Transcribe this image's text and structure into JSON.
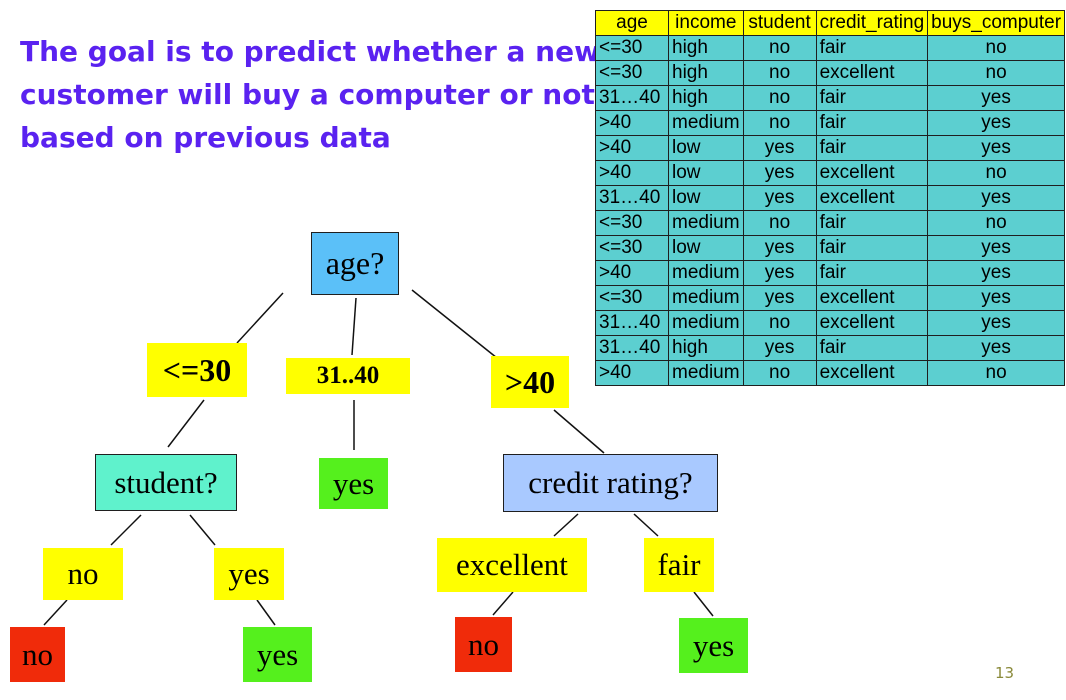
{
  "heading": {
    "lines": [
      "The goal is to predict whether a new",
      "customer will buy a computer or not",
      "based on previous data"
    ]
  },
  "table": {
    "headers": [
      "age",
      "income",
      "student",
      "credit_rating",
      "buys_computer"
    ],
    "rows": [
      [
        "<=30",
        "high",
        "no",
        "fair",
        "no"
      ],
      [
        "<=30",
        "high",
        "no",
        "excellent",
        "no"
      ],
      [
        "31…40",
        "high",
        "no",
        "fair",
        "yes"
      ],
      [
        ">40",
        "medium",
        "no",
        "fair",
        "yes"
      ],
      [
        ">40",
        "low",
        "yes",
        "fair",
        "yes"
      ],
      [
        ">40",
        "low",
        "yes",
        "excellent",
        "no"
      ],
      [
        "31…40",
        "low",
        "yes",
        "excellent",
        "yes"
      ],
      [
        "<=30",
        "medium",
        "no",
        "fair",
        "no"
      ],
      [
        "<=30",
        "low",
        "yes",
        "fair",
        "yes"
      ],
      [
        ">40",
        "medium",
        "yes",
        "fair",
        "yes"
      ],
      [
        "<=30",
        "medium",
        "yes",
        "excellent",
        "yes"
      ],
      [
        "31…40",
        "medium",
        "no",
        "excellent",
        "yes"
      ],
      [
        "31…40",
        "high",
        "yes",
        "fair",
        "yes"
      ],
      [
        ">40",
        "medium",
        "no",
        "excellent",
        "no"
      ]
    ]
  },
  "tree": {
    "root": "age?",
    "branch_le30": "<=30",
    "branch_31_40": "31..40",
    "branch_gt40": ">40",
    "student_node": "student?",
    "credit_node": "credit rating?",
    "student_no": "no",
    "student_yes": "yes",
    "credit_excellent": "excellent",
    "credit_fair": "fair",
    "leaf_student_no": "no",
    "leaf_student_yes": "yes",
    "leaf_middle": "yes",
    "leaf_credit_excellent": "no",
    "leaf_credit_fair": "yes"
  },
  "colors": {
    "heading": "#5a22f0",
    "table_header": "#ffff00",
    "table_cell": "#5ccfd0",
    "root_node": "#5bc0f8",
    "student_node": "#5ff2cc",
    "credit_node": "#a9c9ff",
    "branch_label": "#ffff00",
    "leaf_yes": "#55f01d",
    "leaf_no": "#f02b0a"
  },
  "page_number": "13"
}
